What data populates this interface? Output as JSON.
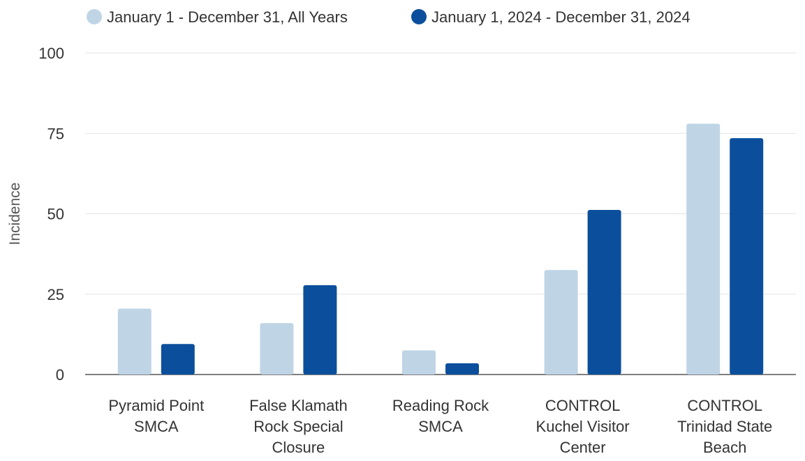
{
  "chart_data": {
    "type": "bar",
    "title": "",
    "xlabel": "",
    "ylabel": "Incidence",
    "categories": [
      [
        "Pyramid Point",
        "SMCA"
      ],
      [
        "False Klamath",
        "Rock Special",
        "Closure"
      ],
      [
        "Reading Rock",
        "SMCA"
      ],
      [
        "CONTROL",
        "Kuchel Visitor",
        "Center"
      ],
      [
        "CONTROL",
        "Trinidad State",
        "Beach"
      ]
    ],
    "series": [
      {
        "name": "January 1 - December 31, All Years",
        "color": "#bfd5e6",
        "values": [
          20.5,
          16,
          7.5,
          32.5,
          78
        ]
      },
      {
        "name": "January 1, 2024 - December 31, 2024",
        "color": "#0b4f9c",
        "values": [
          9.5,
          27.8,
          3.5,
          51.2,
          73.5
        ]
      }
    ],
    "yticks": [
      0,
      25,
      50,
      75,
      100
    ],
    "ylim": [
      0,
      100
    ],
    "grid": true,
    "legend_position": "top-left"
  }
}
